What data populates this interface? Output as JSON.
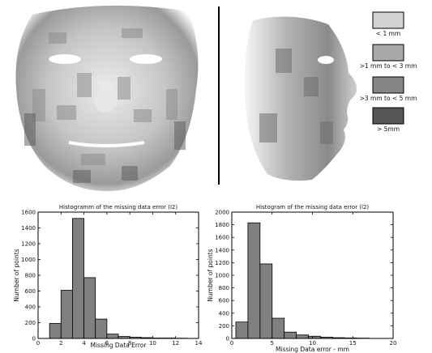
{
  "legend": {
    "items": [
      {
        "label": "< 1 mm",
        "color": "#d2d2d2"
      },
      {
        "label": ">1 mm to < 3 mm",
        "color": "#a9a9a9"
      },
      {
        "label": ">3 mm to < 5 mm",
        "color": "#858585"
      },
      {
        "label": "> 5mm",
        "color": "#555555"
      }
    ]
  },
  "chart_data": [
    {
      "type": "bar",
      "title": "Histogramm of the missing data error (l2)",
      "xlabel": "Missing Data Error",
      "ylabel": "Number of points",
      "bins": [
        [
          1,
          2
        ],
        [
          2,
          3
        ],
        [
          3,
          4
        ],
        [
          4,
          5
        ],
        [
          5,
          6
        ],
        [
          6,
          7
        ],
        [
          7,
          8
        ],
        [
          8,
          9
        ],
        [
          9,
          10
        ],
        [
          10,
          11
        ],
        [
          11,
          12
        ],
        [
          12,
          13
        ]
      ],
      "values": [
        190,
        610,
        1520,
        770,
        245,
        55,
        25,
        15,
        10,
        5,
        5,
        3
      ],
      "xlim": [
        0,
        14
      ],
      "ylim": [
        0,
        1600
      ],
      "xticks": [
        "0",
        "2",
        "4",
        "6",
        "8",
        "10",
        "12",
        "14"
      ],
      "yticks": [
        "0",
        "200",
        "400",
        "600",
        "800",
        "1000",
        "1200",
        "1400",
        "1600"
      ],
      "bar_color": "#808080",
      "grid": false
    },
    {
      "type": "bar",
      "title": "Histogram of the missing data error (l2)",
      "xlabel": "Missing Data error - mm",
      "ylabel": "Number of points",
      "bins": [
        [
          0.5,
          2
        ],
        [
          2,
          3.5
        ],
        [
          3.5,
          5
        ],
        [
          5,
          6.5
        ],
        [
          6.5,
          8
        ],
        [
          8,
          9.5
        ],
        [
          9.5,
          11
        ],
        [
          11,
          12.5
        ],
        [
          12.5,
          14
        ],
        [
          14,
          15.5
        ],
        [
          15.5,
          17
        ]
      ],
      "values": [
        260,
        1830,
        1180,
        320,
        100,
        55,
        35,
        20,
        12,
        8,
        5
      ],
      "xlim": [
        0,
        20
      ],
      "ylim": [
        0,
        2000
      ],
      "xticks": [
        "0",
        "5",
        "10",
        "15",
        "20"
      ],
      "yticks": [
        "0",
        "200",
        "400",
        "600",
        "800",
        "1000",
        "1200",
        "1400",
        "1600",
        "1800",
        "2000"
      ],
      "bar_color": "#808080",
      "grid": false
    }
  ]
}
